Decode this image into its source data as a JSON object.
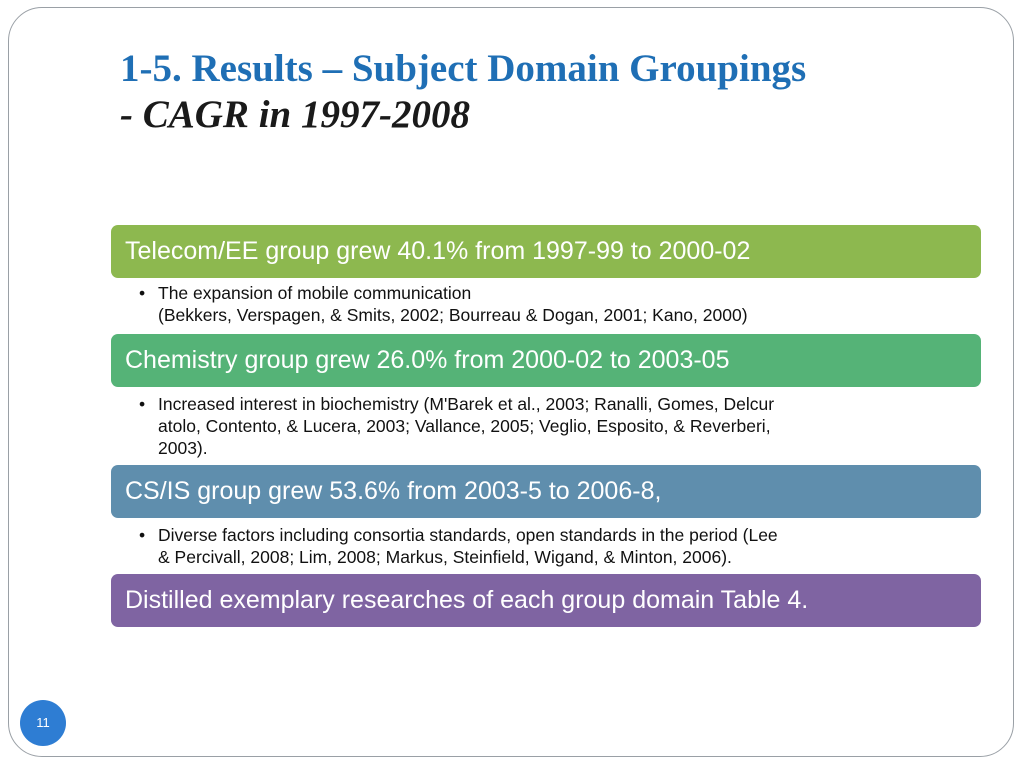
{
  "slide": {
    "title": "1-5. Results – Subject Domain Groupings",
    "subtitle": "- CAGR in 1997-2008",
    "page_number": "11",
    "colors": {
      "title": "#1f6fb5",
      "bar_green_light": "#8db84f",
      "bar_green": "#55b377",
      "bar_blue": "#5f8ead",
      "bar_purple": "#7f64a2",
      "page_badge": "#2e7dd3"
    }
  },
  "sections": [
    {
      "heading": "Telecom/EE group grew 40.1% from 1997-99 to 2000-02",
      "bullet_lines": [
        "The expansion of mobile communication",
        "(Bekkers, Verspagen, & Smits, 2002; Bourreau & Dogan, 2001; Kano, 2000)"
      ]
    },
    {
      "heading": "Chemistry group grew 26.0% from 2000-02 to 2003-05",
      "bullet_lines": [
        "Increased interest in biochemistry (M'Barek et al., 2003; Ranalli, Gomes, Delcur",
        "atolo, Contento, & Lucera, 2003; Vallance, 2005; Veglio, Esposito, & Reverberi,",
        "2003)."
      ]
    },
    {
      "heading": "CS/IS group grew 53.6% from 2003-5 to 2006-8,",
      "bullet_lines": [
        "Diverse factors including consortia standards, open standards in the period (Lee",
        "& Percivall, 2008; Lim, 2008; Markus, Steinfield, Wigand, & Minton, 2006)."
      ]
    },
    {
      "heading": "Distilled exemplary researches of each group domain Table 4."
    }
  ]
}
